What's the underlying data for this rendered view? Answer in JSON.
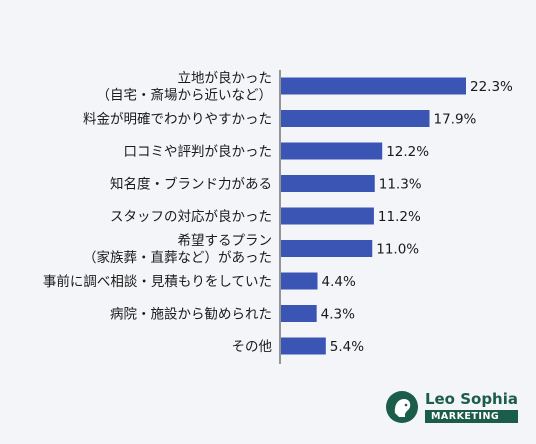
{
  "chart_data": {
    "type": "bar",
    "orientation": "horizontal",
    "categories": [
      [
        "立地が良かった",
        "（自宅・斎場から近いなど）"
      ],
      [
        "料金が明確でわかりやすかった"
      ],
      [
        "口コミや評判が良かった"
      ],
      [
        "知名度・ブランド力がある"
      ],
      [
        "スタッフの対応が良かった"
      ],
      [
        "希望するプラン",
        "（家族葬・直葬など）があった"
      ],
      [
        "事前に調べ相談・見積もりをしていた"
      ],
      [
        "病院・施設から勧められた"
      ],
      [
        "その他"
      ]
    ],
    "values": [
      22.3,
      17.9,
      12.2,
      11.3,
      11.2,
      11.0,
      4.4,
      4.3,
      5.4
    ],
    "value_labels": [
      "22.3%",
      "17.9%",
      "12.2%",
      "11.3%",
      "11.2%",
      "11.0%",
      "4.4%",
      "4.3%",
      "5.4%"
    ],
    "xlim": [
      0,
      22.3
    ],
    "bar_color": "#3b55b5",
    "grid": false
  },
  "logo": {
    "name": "Leo Sophia",
    "tagline": "MARKETING",
    "icon": "lion-head-icon",
    "color": "#1c5d49"
  }
}
